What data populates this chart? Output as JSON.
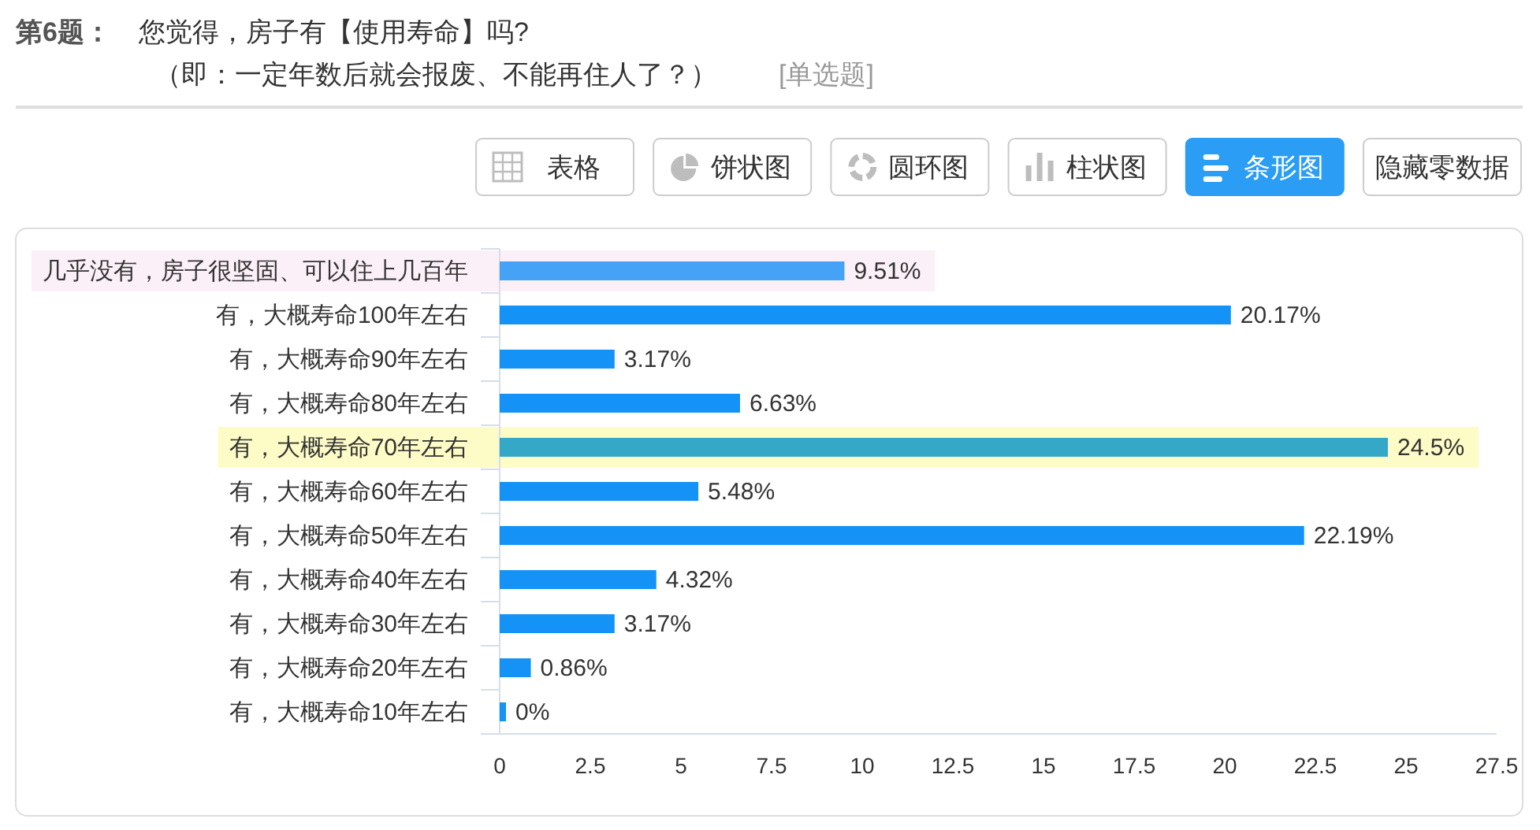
{
  "chart_data": {
    "type": "bar",
    "orientation": "horizontal",
    "title": "您觉得，房子有【使用寿命】吗?",
    "subtitle": "（即：一定年数后就会报废、不能再住人了？）",
    "annotations": [
      "第6题：",
      "[单选题]",
      "表格",
      "饼状图",
      "圆环图",
      "柱状图",
      "条形图",
      "隐藏零数据"
    ],
    "categories": [
      "几乎没有，房子很坚固、可以住上几百年",
      "有，大概寿命100年左右",
      "有，大概寿命90年左右",
      "有，大概寿命80年左右",
      "有，大概寿命70年左右",
      "有，大概寿命60年左右",
      "有，大概寿命50年左右",
      "有，大概寿命40年左右",
      "有，大概寿命30年左右",
      "有，大概寿命20年左右",
      "有，大概寿命10年左右"
    ],
    "values": [
      9.51,
      20.17,
      3.17,
      6.63,
      24.5,
      5.48,
      22.19,
      4.32,
      3.17,
      0.86,
      0
    ],
    "colors": [
      "#45a2f6",
      "#1592f5",
      "#1592f5",
      "#1592f5",
      "#34a8c6",
      "#1592f5",
      "#1592f5",
      "#1592f5",
      "#1592f5",
      "#1592f5",
      "#1592f5"
    ],
    "value_labels": [
      "9.51%",
      "20.17%",
      "3.17%",
      "6.63%",
      "24.5%",
      "5.48%",
      "22.19%",
      "4.32%",
      "3.17%",
      "0.86%",
      "0%"
    ],
    "xlim": [
      0,
      27.5
    ],
    "xticks": [
      0,
      2.5,
      5,
      7.5,
      10,
      12.5,
      15,
      17.5,
      20,
      22.5,
      25,
      27.5
    ],
    "bands": [
      {
        "axis": "y",
        "from": "几乎没有，房子很坚固、可以住上几百年",
        "to": "几乎没有，房子很坚固、可以住上几百年",
        "color": "#fcf0f8"
      },
      {
        "axis": "y",
        "from": "有，大概寿命70年左右",
        "to": "有，大概寿命70年左右",
        "color": "#fdfbc6"
      }
    ]
  }
}
